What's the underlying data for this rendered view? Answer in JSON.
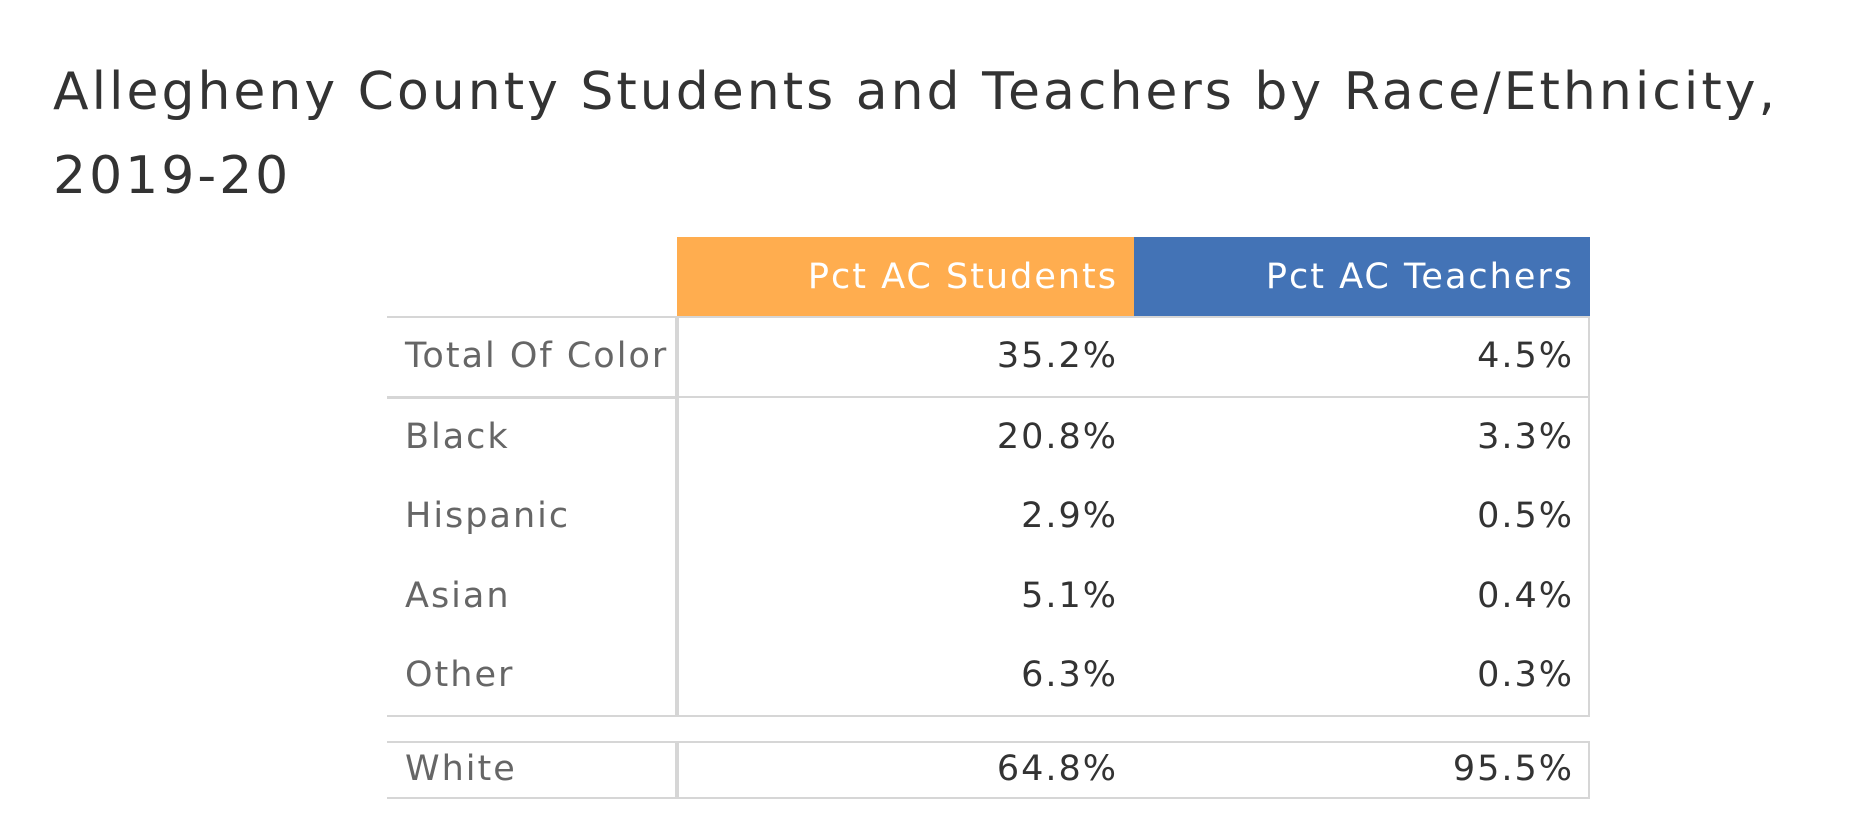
{
  "title": "Allegheny County Students and Teachers by Race/Ethnicity, 2019-20",
  "table": {
    "columns": [
      "Pct AC Students",
      "Pct AC Teachers"
    ],
    "groups": [
      [
        [
          "Total Of Color",
          "35.2%",
          "4.5%"
        ]
      ],
      [
        [
          "Black",
          "20.8%",
          "3.3%"
        ],
        [
          "Hispanic",
          "2.9%",
          "0.5%"
        ],
        [
          "Asian",
          "5.1%",
          "0.4%"
        ],
        [
          "Other",
          "6.3%",
          "0.3%"
        ]
      ],
      [
        [
          "White",
          "64.8%",
          "95.5%"
        ]
      ]
    ]
  }
}
